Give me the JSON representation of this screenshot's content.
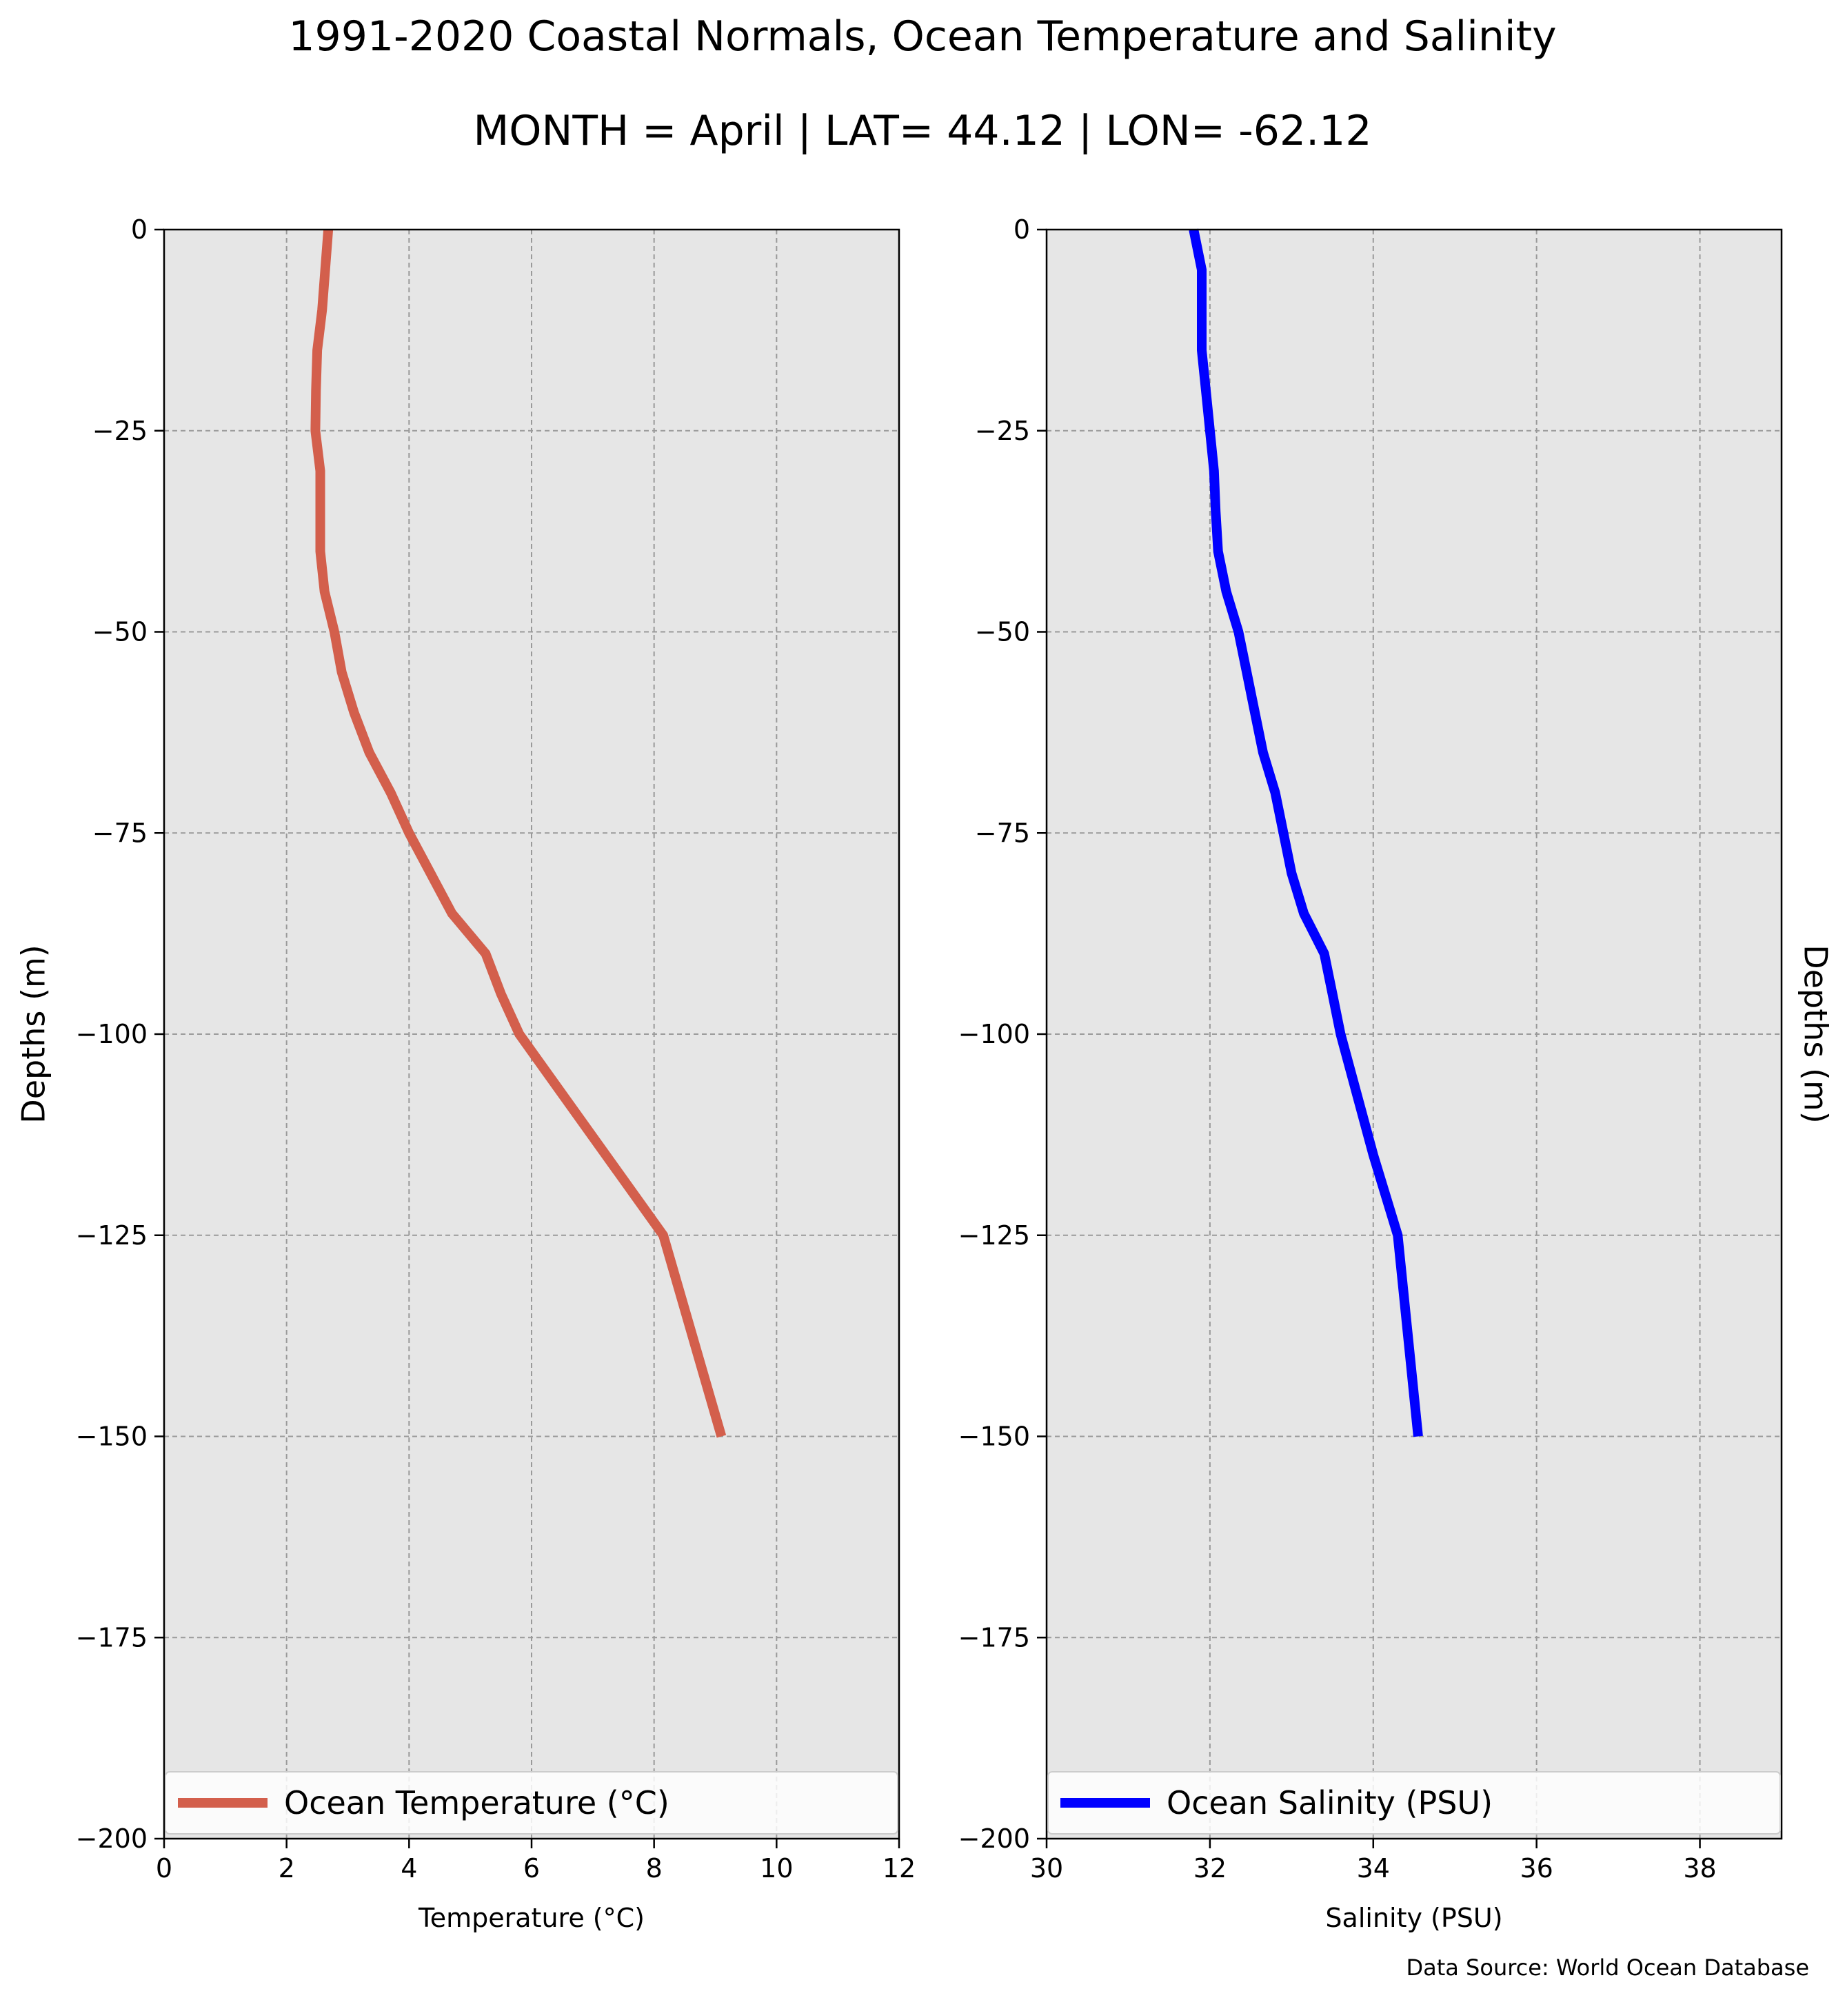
{
  "figure": {
    "title": "1991-2020 Coastal Normals, Ocean Temperature and Salinity",
    "subtitle": "MONTH = April | LAT= 44.12 | LON= -62.12",
    "source": "Data Source: World Ocean Database",
    "background": "#ffffff",
    "plot_bg": "#e6e6e6",
    "grid": true
  },
  "chart_data": [
    {
      "type": "line",
      "xlabel": "Temperature (°C)",
      "ylabel": "Depths (m)",
      "xlim": [
        0,
        12
      ],
      "ylim": [
        -200,
        0
      ],
      "xticks": [
        0,
        2,
        4,
        6,
        8,
        10,
        12
      ],
      "yticks": [
        0,
        -25,
        -50,
        -75,
        -100,
        -125,
        -150,
        -175,
        -200
      ],
      "legend": "lower-center",
      "series": [
        {
          "name": "Ocean Temperature (°C)",
          "color": "#d35f4c",
          "points": [
            [
              2.68,
              0
            ],
            [
              2.58,
              -10
            ],
            [
              2.5,
              -15
            ],
            [
              2.48,
              -20
            ],
            [
              2.47,
              -25
            ],
            [
              2.55,
              -30
            ],
            [
              2.55,
              -35
            ],
            [
              2.55,
              -40
            ],
            [
              2.62,
              -45
            ],
            [
              2.78,
              -50
            ],
            [
              2.9,
              -55
            ],
            [
              3.1,
              -60
            ],
            [
              3.35,
              -65
            ],
            [
              3.7,
              -70
            ],
            [
              4.0,
              -75
            ],
            [
              4.35,
              -80
            ],
            [
              4.7,
              -85
            ],
            [
              5.25,
              -90
            ],
            [
              5.5,
              -95
            ],
            [
              5.8,
              -100
            ],
            [
              8.15,
              -125
            ],
            [
              9.1,
              -150
            ]
          ]
        }
      ]
    },
    {
      "type": "line",
      "xlabel": "Salinity (PSU)",
      "ylabel": "Depths (m)",
      "xlim": [
        30,
        39
      ],
      "ylim": [
        -200,
        0
      ],
      "xticks": [
        30,
        32,
        34,
        36,
        38
      ],
      "yticks": [
        0,
        -25,
        -50,
        -75,
        -100,
        -125,
        -150,
        -175,
        -200
      ],
      "legend": "lower-center",
      "series": [
        {
          "name": "Ocean Salinity (PSU)",
          "color": "#0000ff",
          "points": [
            [
              31.8,
              0
            ],
            [
              31.9,
              -5
            ],
            [
              31.9,
              -10
            ],
            [
              31.9,
              -15
            ],
            [
              31.95,
              -20
            ],
            [
              32.0,
              -25
            ],
            [
              32.05,
              -30
            ],
            [
              32.07,
              -35
            ],
            [
              32.1,
              -40
            ],
            [
              32.2,
              -45
            ],
            [
              32.35,
              -50
            ],
            [
              32.45,
              -55
            ],
            [
              32.55,
              -60
            ],
            [
              32.65,
              -65
            ],
            [
              32.8,
              -70
            ],
            [
              32.9,
              -75
            ],
            [
              33.0,
              -80
            ],
            [
              33.15,
              -85
            ],
            [
              33.4,
              -90
            ],
            [
              33.5,
              -95
            ],
            [
              33.6,
              -100
            ],
            [
              34.0,
              -115
            ],
            [
              34.3,
              -125
            ],
            [
              34.55,
              -150
            ]
          ]
        }
      ]
    }
  ]
}
